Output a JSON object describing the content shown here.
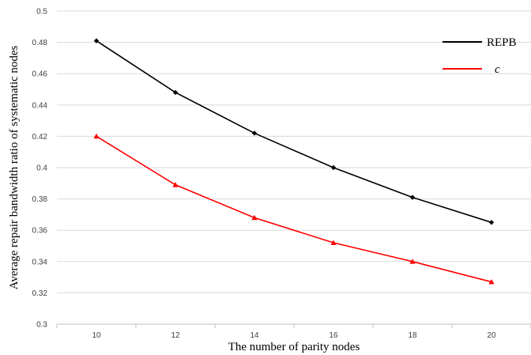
{
  "chart_data": {
    "type": "line",
    "x": [
      10,
      12,
      14,
      16,
      18,
      20
    ],
    "x_tick_labels": [
      "10",
      "12",
      "14",
      "16",
      "18",
      "20"
    ],
    "y_tick_labels": [
      "0.3",
      "0.32",
      "0.34",
      "0.36",
      "0.38",
      "0.4",
      "0.42",
      "0.44",
      "0.46",
      "0.48",
      "0.5"
    ],
    "xlim": [
      9,
      21
    ],
    "ylim": [
      0.3,
      0.5
    ],
    "xlabel": "The number of parity nodes",
    "ylabel": "Average repair bandwidth ratio of systematic  nodes",
    "grid": "horizontal",
    "legend_position": "top-right",
    "series": [
      {
        "name": "REPB",
        "color": "#000000",
        "marker": "diamond",
        "values": [
          0.481,
          0.448,
          0.422,
          0.4,
          0.381,
          0.365
        ]
      },
      {
        "name": "c",
        "color": "#ff0000",
        "marker": "triangle",
        "values": [
          0.42,
          0.389,
          0.368,
          0.352,
          0.34,
          0.327
        ]
      }
    ]
  }
}
